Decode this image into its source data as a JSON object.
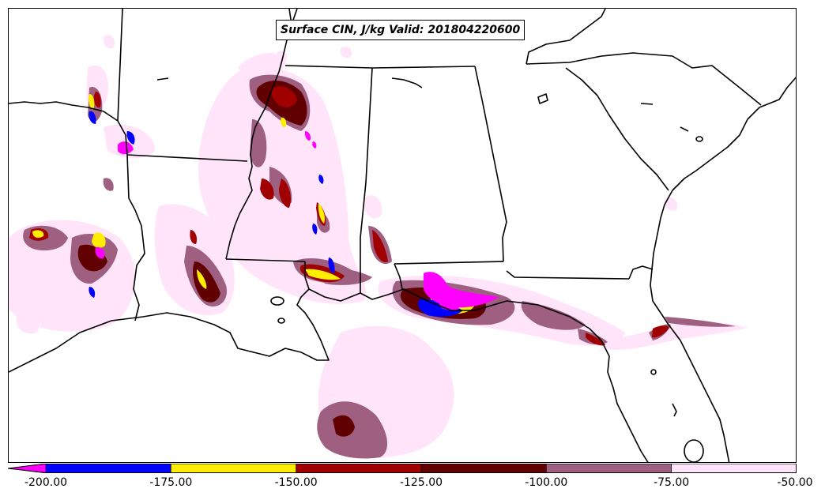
{
  "title": "Surface CIN, J/kg Valid: 201804220600",
  "colorbar": {
    "tick_labels": [
      "-200.00",
      "-175.00",
      "-150.00",
      "-125.00",
      "-100.00",
      "-75.00",
      "-50.00"
    ],
    "bins": [
      {
        "from": -225,
        "to": -200,
        "color": "#ff00ff"
      },
      {
        "from": -200,
        "to": -175,
        "color": "#0000ff"
      },
      {
        "from": -175,
        "to": -150,
        "color": "#ffee00"
      },
      {
        "from": -150,
        "to": -125,
        "color": "#a00000"
      },
      {
        "from": -125,
        "to": -100,
        "color": "#600000"
      },
      {
        "from": -100,
        "to": -75,
        "color": "#9e5f80"
      },
      {
        "from": -75,
        "to": -50,
        "color": "#ffe4fa"
      }
    ]
  },
  "colors": {
    "magenta": "#ff00ff",
    "blue": "#0000ff",
    "yellow": "#ffee00",
    "red": "#a00000",
    "dark_red": "#600000",
    "mauve": "#9e5f80",
    "light_pink": "#ffe4fa"
  }
}
